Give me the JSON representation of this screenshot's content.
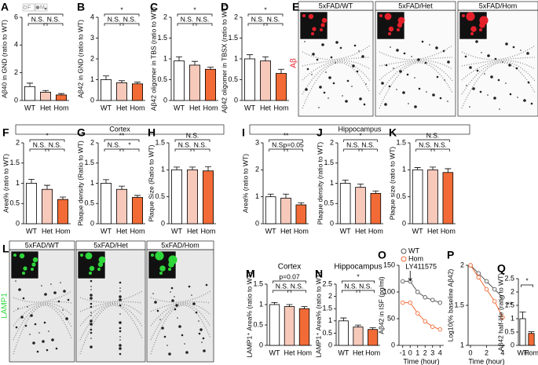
{
  "sections": [
    "Cortex",
    "Hippocampus"
  ],
  "images": [
    {
      "panel": "E",
      "label": "Aβ",
      "titles": [
        "5xFAD/WT",
        "5xFAD/Het",
        "5xFAD/Hom"
      ]
    },
    {
      "panel": "L",
      "label": "LAMP1",
      "titles": [
        "5xFAD/WT",
        "5xFAD/Het",
        "5xFAD/Hom"
      ]
    }
  ],
  "chart_data": [
    {
      "type": "bar",
      "panel": "A",
      "ylabel": "Aβ40 in GND (ratio to WT)",
      "legend": [
        "F",
        "M"
      ],
      "categories": [
        "WT",
        "Het",
        "Hom"
      ],
      "values": [
        1,
        0.6,
        0.4
      ],
      "errors": [
        0.25,
        0.12,
        0.1
      ],
      "colors": [
        "#ffffff",
        "#f6c9bb",
        "#f26b36"
      ],
      "ylim": [
        0,
        6
      ],
      "yticks": [
        0,
        2,
        4,
        6
      ],
      "significance": [
        {
          "label": "N.S.",
          "between": [
            0,
            1
          ]
        },
        {
          "label": "*",
          "between": [
            0,
            2
          ]
        },
        {
          "label": "N.S.",
          "between": [
            1,
            2
          ]
        }
      ]
    },
    {
      "type": "bar",
      "panel": "B",
      "ylabel": "Aβ42 in GND (ratio to WT)",
      "categories": [
        "WT",
        "Het",
        "Hom"
      ],
      "values": [
        1,
        0.85,
        0.8
      ],
      "errors": [
        0.18,
        0.1,
        0.08
      ],
      "colors": [
        "#ffffff",
        "#f6c9bb",
        "#f26b36"
      ],
      "ylim": [
        0,
        4
      ],
      "yticks": [
        0,
        1,
        2,
        3,
        4
      ],
      "significance": [
        {
          "label": "N.S.",
          "between": [
            0,
            1
          ]
        },
        {
          "label": "*",
          "between": [
            0,
            2
          ]
        },
        {
          "label": "N.S.",
          "between": [
            1,
            2
          ]
        }
      ]
    },
    {
      "type": "bar",
      "panel": "C",
      "ylabel": "Aβ42 oligomer in TBS (ratio to WT)",
      "categories": [
        "WT",
        "Het",
        "Hom"
      ],
      "values": [
        0.95,
        0.85,
        0.75
      ],
      "errors": [
        0.1,
        0.09,
        0.05
      ],
      "colors": [
        "#ffffff",
        "#f6c9bb",
        "#f26b36"
      ],
      "ylim": [
        0,
        2
      ],
      "yticks": [
        0,
        0.5,
        1,
        1.5,
        2
      ],
      "significance": [
        {
          "label": "N.S.",
          "between": [
            0,
            1
          ]
        },
        {
          "label": "*",
          "between": [
            0,
            2
          ]
        },
        {
          "label": "N.S.",
          "between": [
            1,
            2
          ]
        }
      ]
    },
    {
      "type": "bar",
      "panel": "D",
      "ylabel": "Aβ42 oligomer in TBSX (ratio to WT)",
      "categories": [
        "WT",
        "Het",
        "Hom"
      ],
      "values": [
        1,
        0.95,
        0.65
      ],
      "errors": [
        0.1,
        0.1,
        0.1
      ],
      "colors": [
        "#ffffff",
        "#f6c9bb",
        "#f26b36"
      ],
      "ylim": [
        0,
        2
      ],
      "yticks": [
        0,
        0.5,
        1,
        1.5,
        2
      ],
      "significance": [
        {
          "label": "N.S.",
          "between": [
            0,
            1
          ]
        },
        {
          "label": "*",
          "between": [
            0,
            2
          ]
        },
        {
          "label": "N.S.",
          "between": [
            1,
            2
          ]
        }
      ]
    },
    {
      "type": "bar",
      "panel": "F",
      "ylabel": "Area% (ratio to WT)",
      "categories": [
        "WT",
        "Het",
        "Hom"
      ],
      "values": [
        1,
        0.85,
        0.6
      ],
      "errors": [
        0.1,
        0.1,
        0.06
      ],
      "colors": [
        "#ffffff",
        "#f6c9bb",
        "#f26b36"
      ],
      "ylim": [
        0,
        2
      ],
      "yticks": [
        0,
        0.5,
        1,
        1.5,
        2
      ],
      "significance": [
        {
          "label": "N.S.",
          "between": [
            0,
            1
          ]
        },
        {
          "label": "*",
          "between": [
            0,
            2
          ]
        },
        {
          "label": "N.S.",
          "between": [
            1,
            2
          ]
        }
      ]
    },
    {
      "type": "bar",
      "panel": "G",
      "ylabel": "Plaque density (Ratio to WT)",
      "categories": [
        "WT",
        "Het",
        "Hom"
      ],
      "values": [
        1,
        0.85,
        0.65
      ],
      "errors": [
        0.09,
        0.08,
        0.05
      ],
      "colors": [
        "#ffffff",
        "#f6c9bb",
        "#f26b36"
      ],
      "ylim": [
        0,
        2
      ],
      "yticks": [
        0,
        0.5,
        1,
        1.5,
        2
      ],
      "significance": [
        {
          "label": "N.S.",
          "between": [
            0,
            1
          ]
        },
        {
          "label": "**",
          "between": [
            0,
            2
          ]
        },
        {
          "label": "*",
          "between": [
            1,
            2
          ]
        }
      ]
    },
    {
      "type": "bar",
      "panel": "H",
      "ylabel": "Plaque Size (Ratio to WT)",
      "categories": [
        "WT",
        "Het",
        "Hom"
      ],
      "values": [
        1,
        1,
        0.98
      ],
      "errors": [
        0.05,
        0.05,
        0.08
      ],
      "colors": [
        "#ffffff",
        "#f6c9bb",
        "#f26b36"
      ],
      "ylim": [
        0,
        1.5
      ],
      "yticks": [
        0,
        0.5,
        1,
        1.5
      ],
      "significance": [
        {
          "label": "N.S.",
          "between": [
            0,
            1
          ]
        },
        {
          "label": "N.S.",
          "between": [
            0,
            2
          ]
        },
        {
          "label": "N.S.",
          "between": [
            1,
            2
          ]
        }
      ]
    },
    {
      "type": "bar",
      "panel": "I",
      "ylabel": "Area% (ratio to WT)",
      "categories": [
        "WT",
        "Het",
        "Hom"
      ],
      "values": [
        1,
        0.95,
        0.7
      ],
      "errors": [
        0.1,
        0.15,
        0.08
      ],
      "colors": [
        "#ffffff",
        "#f6c9bb",
        "#f26b36"
      ],
      "ylim": [
        0,
        3
      ],
      "yticks": [
        0,
        1,
        2,
        3
      ],
      "significance": [
        {
          "label": "N.S.",
          "between": [
            0,
            1
          ]
        },
        {
          "label": "**",
          "between": [
            0,
            2
          ]
        },
        {
          "label": "p=0.05",
          "between": [
            1,
            2
          ]
        }
      ]
    },
    {
      "type": "bar",
      "panel": "J",
      "ylabel": "Plaque density (ratio to WT)",
      "categories": [
        "WT",
        "Het",
        "Hom"
      ],
      "values": [
        1,
        0.9,
        0.75
      ],
      "errors": [
        0.08,
        0.08,
        0.06
      ],
      "colors": [
        "#ffffff",
        "#f6c9bb",
        "#f26b36"
      ],
      "ylim": [
        0,
        2
      ],
      "yticks": [
        0,
        0.5,
        1,
        1.5,
        2
      ],
      "significance": [
        {
          "label": "N.S.",
          "between": [
            0,
            1
          ]
        },
        {
          "label": "*",
          "between": [
            0,
            2
          ]
        },
        {
          "label": "N.S.",
          "between": [
            1,
            2
          ]
        }
      ]
    },
    {
      "type": "bar",
      "panel": "K",
      "ylabel": "Plaque size (ratio to WT)",
      "categories": [
        "WT",
        "Het",
        "Hom"
      ],
      "values": [
        1,
        1,
        0.95
      ],
      "errors": [
        0.04,
        0.05,
        0.07
      ],
      "colors": [
        "#ffffff",
        "#f6c9bb",
        "#f26b36"
      ],
      "ylim": [
        0,
        1.5
      ],
      "yticks": [
        0,
        0.5,
        1,
        1.5
      ],
      "significance": [
        {
          "label": "N.S.",
          "between": [
            0,
            1
          ]
        },
        {
          "label": "N.S.",
          "between": [
            0,
            2
          ]
        },
        {
          "label": "N.S.",
          "between": [
            1,
            2
          ]
        }
      ]
    },
    {
      "type": "bar",
      "panel": "M",
      "title": "Cortex",
      "ylabel": "LAMP1⁺ Area% (ratio to WT)",
      "categories": [
        "WT",
        "Het",
        "Hom"
      ],
      "values": [
        1,
        0.95,
        0.9
      ],
      "errors": [
        0.05,
        0.05,
        0.05
      ],
      "colors": [
        "#ffffff",
        "#f6c9bb",
        "#f26b36"
      ],
      "ylim": [
        0,
        1.5
      ],
      "yticks": [
        0,
        0.5,
        1,
        1.5
      ],
      "significance": [
        {
          "label": "N.S.",
          "between": [
            0,
            1
          ]
        },
        {
          "label": "p=0.07",
          "between": [
            0,
            2
          ]
        },
        {
          "label": "N.S.",
          "between": [
            1,
            2
          ]
        }
      ]
    },
    {
      "type": "bar",
      "panel": "N",
      "title": "Hippocampus",
      "ylabel": "LAMP1⁺ Area% (ratio to WT)",
      "categories": [
        "WT",
        "Het",
        "Hom"
      ],
      "values": [
        1,
        0.75,
        0.65
      ],
      "errors": [
        0.12,
        0.08,
        0.07
      ],
      "colors": [
        "#ffffff",
        "#f6c9bb",
        "#f26b36"
      ],
      "ylim": [
        0,
        2.5
      ],
      "yticks": [
        0,
        0.5,
        1,
        1.5,
        2,
        2.5
      ],
      "significance": [
        {
          "label": "N.S.",
          "between": [
            0,
            1
          ]
        },
        {
          "label": "*",
          "between": [
            0,
            2
          ]
        },
        {
          "label": "N.S.",
          "between": [
            1,
            2
          ]
        }
      ]
    },
    {
      "type": "line",
      "panel": "O",
      "ylabel": "Aβ42 in ISF (pg/ml)",
      "xlabel": "Time (hour)",
      "annotation": "LY411575",
      "x": [
        -1,
        0,
        1,
        2,
        3,
        4
      ],
      "series": [
        {
          "name": "WT",
          "color": "#555555",
          "values": [
            120,
            120,
            100,
            90,
            85,
            80
          ]
        },
        {
          "name": "Hom",
          "color": "#f26b36",
          "values": [
            80,
            80,
            60,
            45,
            35,
            30
          ]
        }
      ],
      "xlim": [
        -1.5,
        4.5
      ],
      "xticks": [
        -1,
        0,
        1,
        2,
        3,
        4
      ],
      "ylim": [
        0,
        150
      ],
      "yticks": [
        0,
        50,
        100,
        150
      ]
    },
    {
      "type": "line",
      "panel": "P",
      "ylabel": "Log10(% baseline Aβ42)",
      "xlabel": "Time (hour)",
      "annotation": "**",
      "x": [
        0,
        1,
        2,
        3,
        4
      ],
      "series": [
        {
          "name": "WT",
          "color": "#555555",
          "values": [
            2,
            1.9,
            1.8,
            1.7,
            1.6
          ]
        },
        {
          "name": "Hom",
          "color": "#f26b36",
          "values": [
            2,
            1.85,
            1.7,
            1.55,
            1.35
          ]
        }
      ],
      "xlim": [
        -0.3,
        4.3
      ],
      "xticks": [
        0,
        2,
        4
      ],
      "ylim": [
        1,
        2
      ],
      "yticks": [
        1,
        1.5,
        2
      ]
    },
    {
      "type": "bar",
      "panel": "Q",
      "ylabel": "Aβ42 half-life (ratio to WT)",
      "categories": [
        "WT",
        "Hom"
      ],
      "values": [
        1,
        0.45
      ],
      "errors": [
        0.25,
        0.06
      ],
      "colors": [
        "#ffffff",
        "#f26b36"
      ],
      "ylim": [
        0,
        2.5
      ],
      "yticks": [
        0,
        0.5,
        1,
        1.5,
        2,
        2.5
      ],
      "significance": [
        {
          "label": "*",
          "between": [
            0,
            1
          ]
        }
      ]
    }
  ]
}
